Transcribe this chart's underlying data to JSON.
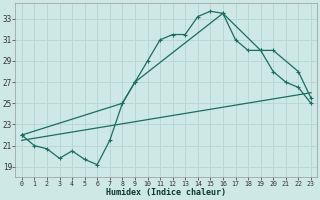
{
  "xlabel": "Humidex (Indice chaleur)",
  "background_color": "#cde8e5",
  "grid_color": "#b8d8d4",
  "line_color": "#1a6e60",
  "xlim": [
    -0.5,
    23.5
  ],
  "ylim": [
    18.0,
    34.5
  ],
  "xticks": [
    0,
    1,
    2,
    3,
    4,
    5,
    6,
    7,
    8,
    9,
    10,
    11,
    12,
    13,
    14,
    15,
    16,
    17,
    18,
    19,
    20,
    21,
    22,
    23
  ],
  "yticks": [
    19,
    21,
    23,
    25,
    27,
    29,
    31,
    33
  ],
  "line1_x": [
    0,
    1,
    2,
    3,
    4,
    5,
    6,
    7,
    8,
    9,
    10,
    11,
    12,
    13,
    14,
    15,
    16,
    17,
    18,
    19,
    20,
    21,
    22,
    23
  ],
  "line1_y": [
    22.0,
    21.0,
    20.7,
    19.8,
    20.5,
    19.7,
    19.2,
    21.5,
    25.0,
    27.0,
    29.0,
    31.0,
    31.5,
    31.5,
    33.2,
    33.7,
    33.5,
    31.0,
    30.0,
    30.0,
    28.0,
    27.0,
    26.5,
    25.0
  ],
  "line2_x": [
    0,
    8,
    9,
    16,
    19,
    20,
    22,
    23
  ],
  "line2_y": [
    22.0,
    25.0,
    27.0,
    33.5,
    30.0,
    30.0,
    28.0,
    25.5
  ],
  "line3_x": [
    0,
    23
  ],
  "line3_y": [
    21.5,
    26.0
  ]
}
